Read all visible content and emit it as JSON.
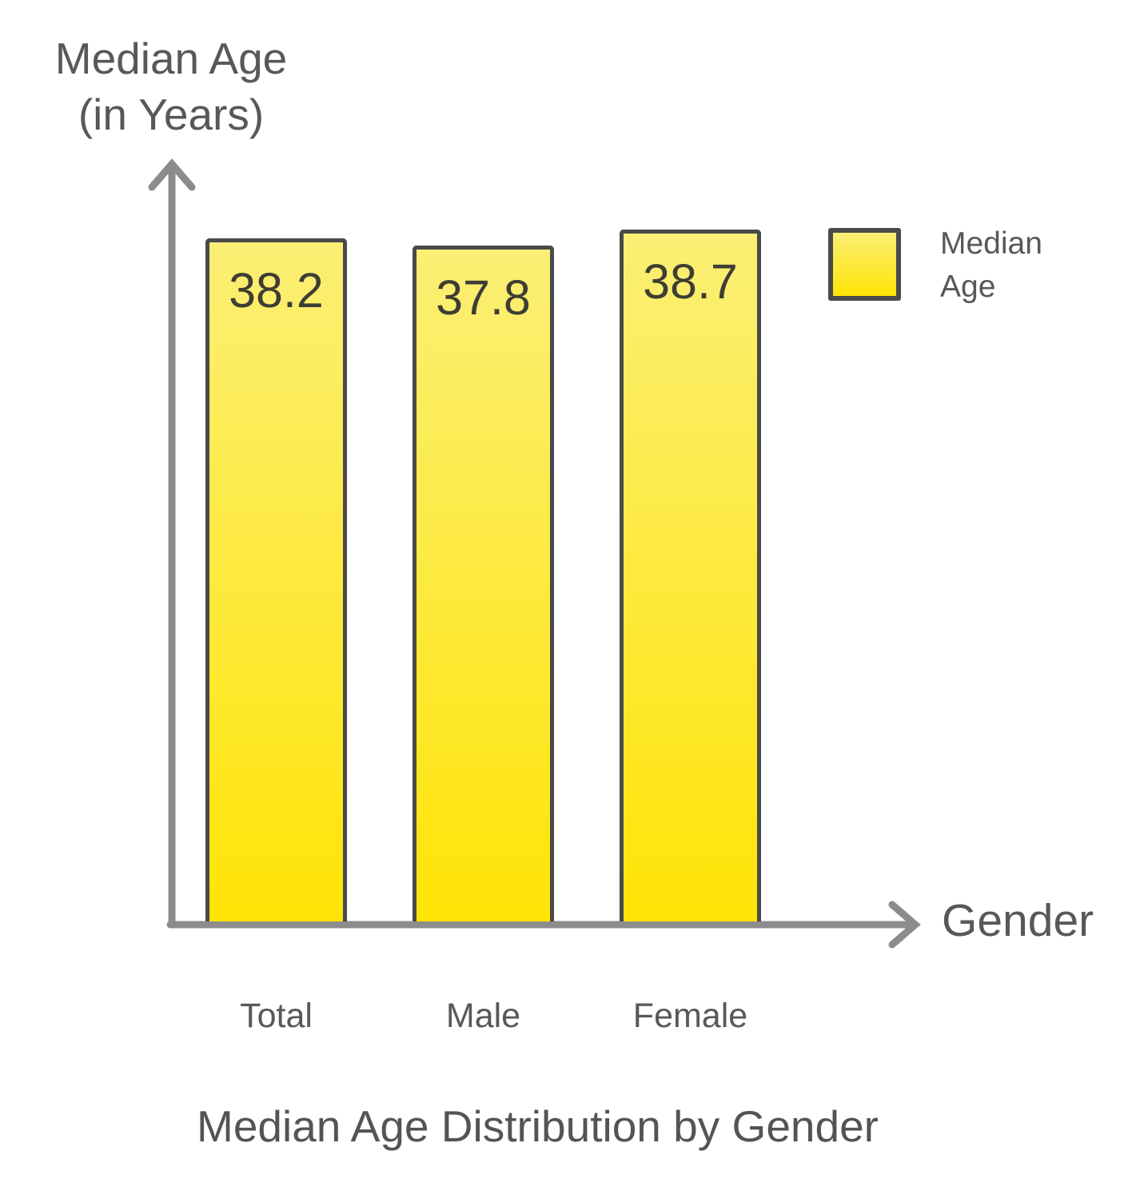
{
  "chart_data": {
    "type": "bar",
    "title": "Median Age Distribution by Gender",
    "xlabel": "Gender",
    "ylabel": "Median Age\n(in Years)",
    "categories": [
      "Total",
      "Male",
      "Female"
    ],
    "values": [
      38.2,
      37.8,
      38.7
    ],
    "series": [
      {
        "name": "Median Age",
        "values": [
          38.2,
          37.8,
          38.7
        ]
      }
    ],
    "legend": [
      {
        "label": "Median Age",
        "swatch": "yellow-gradient-square"
      }
    ],
    "legend_position": "top-right",
    "grid": false,
    "axis_style": "arrow-chevron",
    "value_labels_shown": true,
    "ylim": [
      0,
      42.5
    ]
  },
  "colors": {
    "background": "#FFFFFF",
    "bar_fill_top": "#FBEF75",
    "bar_fill_bottom": "#FFE406",
    "bar_border": "#4A4A4A",
    "axis": "#8C8C8C",
    "label_text": "#58585A",
    "value_text": "#3E3D33",
    "title_text": "#545454"
  }
}
